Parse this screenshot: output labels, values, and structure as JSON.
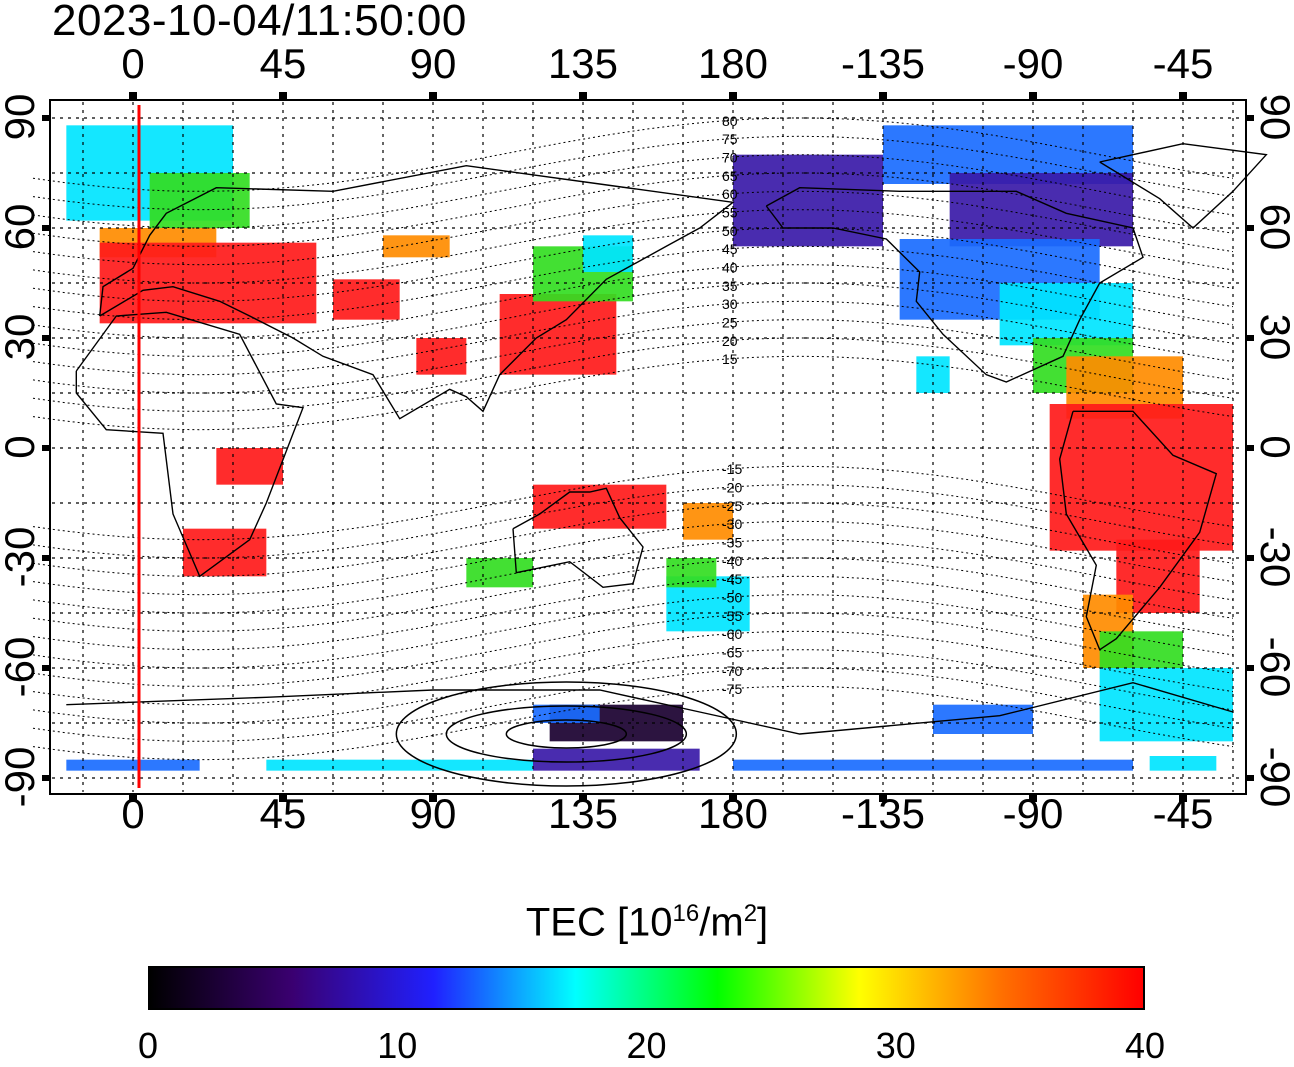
{
  "timestamp": "2023-10-04/11:50:00",
  "x_ticks": [
    "0",
    "45",
    "90",
    "135",
    "180",
    "-135",
    "-90",
    "-45"
  ],
  "y_ticks": [
    "90",
    "60",
    "30",
    "0",
    "-30",
    "-60",
    "-90"
  ],
  "contour_labels_north": [
    "80",
    "75",
    "70",
    "65",
    "60",
    "55",
    "50",
    "45",
    "40",
    "35",
    "30",
    "25",
    "20",
    "15"
  ],
  "contour_labels_south": [
    "-15",
    "-20",
    "-25",
    "-30",
    "-35",
    "-40",
    "-45",
    "-50",
    "-55",
    "-60",
    "-65",
    "-70",
    "-75"
  ],
  "colorbar": {
    "label_main": "TEC  [10",
    "label_exp1": "16",
    "label_mid": "/m",
    "label_exp2": "2",
    "label_end": "]",
    "min": 0,
    "max": 40,
    "ticks": [
      "0",
      "10",
      "20",
      "30",
      "40"
    ],
    "colors": [
      "#000000",
      "#3a0070",
      "#2020ff",
      "#00ffff",
      "#00ff00",
      "#ffff00",
      "#ff7000",
      "#ff0000"
    ]
  },
  "map_colors": {
    "red": "#ff1a1a",
    "orange": "#ff8c00",
    "yellow": "#ffee00",
    "green": "#33dd22",
    "cyan": "#00e5ff",
    "blue": "#1a6dff",
    "indigo": "#3a1aa8",
    "dark": "#1a0030",
    "grid": "#000000",
    "meridian_marker": "#ff0000"
  }
}
